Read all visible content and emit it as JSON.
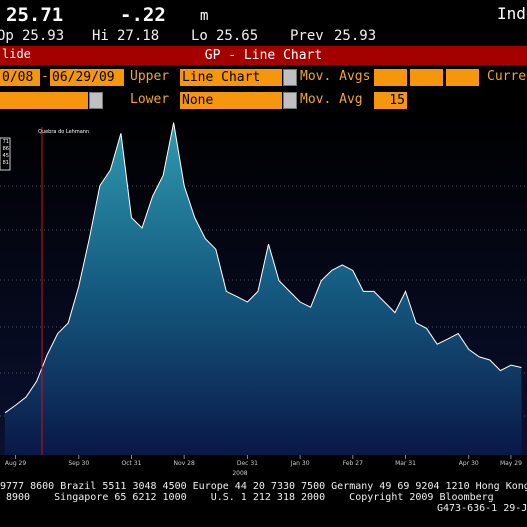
{
  "header": {
    "price": "25.71",
    "change": "-.22",
    "flag": "m",
    "right": "Inde"
  },
  "quote": [
    {
      "label": "Op",
      "value": "25.93"
    },
    {
      "label": "Hi",
      "value": "27.18"
    },
    {
      "label": "Lo",
      "value": "25.65"
    },
    {
      "label": "Prev",
      "value": "25.93"
    }
  ],
  "title_bar": {
    "left": "lide",
    "title": "GP - Line Chart"
  },
  "controls": {
    "date_from": "0/08",
    "dash": "-",
    "date_to": "06/29/09",
    "upper_label": "Upper",
    "upper_value": "Line Chart",
    "mov_avgs_label": "Mov. Avgs",
    "currency_label": "Curren",
    "lower_label": "Lower",
    "lower_value": "None",
    "mov_avg_label": "Mov. Avg",
    "mov_avg_value": "15"
  },
  "chart_data": {
    "type": "line",
    "annotation": "Quebra do Lehmann",
    "axis_box": [
      "71",
      "86",
      "45",
      "81"
    ],
    "year_label": "2008",
    "categories": [
      null,
      "Aug 29",
      null,
      null,
      null,
      null,
      null,
      "Sep 30",
      null,
      null,
      null,
      null,
      "Oct 31",
      null,
      null,
      null,
      null,
      "Nov 28",
      null,
      null,
      null,
      null,
      null,
      "Dec 31",
      null,
      null,
      null,
      null,
      "Jan 30",
      null,
      null,
      null,
      null,
      "Feb 27",
      null,
      null,
      null,
      null,
      "Mar 31",
      null,
      null,
      null,
      null,
      null,
      "Apr 30",
      null,
      null,
      null,
      "May 29",
      null
    ],
    "values": [
      12.3,
      14.5,
      16.9,
      21.5,
      29.2,
      35.4,
      38.5,
      49.2,
      63.1,
      78.5,
      83.1,
      93.8,
      69.2,
      66.2,
      75.4,
      81.5,
      96.9,
      78.5,
      69.2,
      63.1,
      60,
      47.7,
      46.2,
      44.6,
      47.7,
      61.5,
      50.8,
      47.7,
      44.6,
      43.1,
      50.8,
      53.8,
      55.4,
      53.8,
      47.7,
      47.7,
      44.6,
      41.5,
      47.7,
      38.5,
      36.9,
      32.3,
      33.8,
      35.4,
      30.8,
      28.6,
      27.7,
      24.6,
      26.2,
      25.5
    ],
    "color": "#ffffff",
    "ylim": [
      0,
      100
    ]
  },
  "footer": {
    "lines": [
      "9777 8600 Brazil 5511 3048 4500 Europe 44 20 7330 7500 Germany 49 69 9204 1210 Hong Kong",
      "8900    Singapore 65 6212 1000    U.S. 1 212 318 2000    Copyright 2009 Bloomberg",
      "G473-636-1 29-J"
    ]
  }
}
